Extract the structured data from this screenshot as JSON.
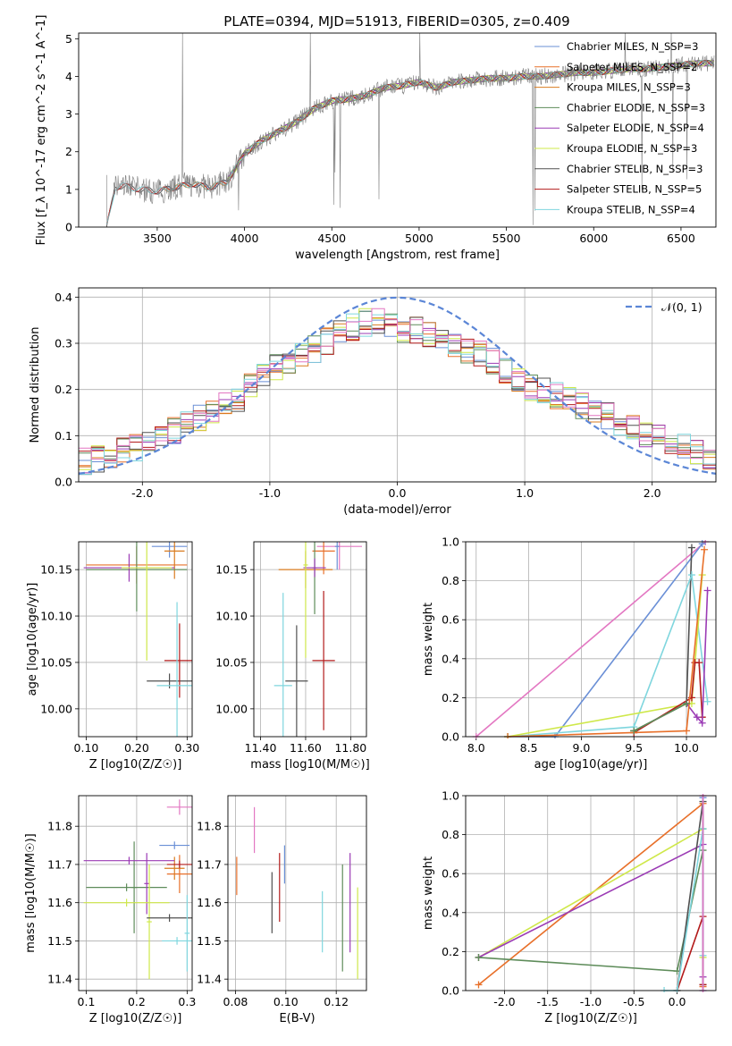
{
  "figure": {
    "title": "PLATE=0394, MJD=51913, FIBERID=0305, z=0.409"
  },
  "chart_data": [
    {
      "id": "spectrum",
      "type": "line",
      "xlabel": "wavelength [Angstrom, rest frame]",
      "ylabel": "Flux [f_λ 10^-17 erg cm^-2 s^-1 A^-1]",
      "xlim": [
        3050,
        6700
      ],
      "ylim": [
        0,
        5.15
      ],
      "xticks": [
        3500,
        4000,
        4500,
        5000,
        5500,
        6000,
        6500
      ],
      "yticks": [
        0,
        1,
        2,
        3,
        4,
        5
      ],
      "grid": false,
      "legend_position": "right",
      "data_color": "#808080",
      "data_anchor": {
        "x": [
          3210,
          3260,
          3300,
          3400,
          3500,
          3600,
          3700,
          3800,
          3900,
          4000,
          4100,
          4200,
          4300,
          4400,
          4500,
          4600,
          4700,
          4800,
          4900,
          5000,
          5100,
          5200,
          5300,
          5400,
          5500,
          5600,
          5700,
          5800,
          5900,
          6000,
          6100,
          6200,
          6300,
          6400,
          6500,
          6600,
          6690
        ],
        "y": [
          0.0,
          1.05,
          1.1,
          1.0,
          0.95,
          1.05,
          1.15,
          1.05,
          1.2,
          1.95,
          2.3,
          2.55,
          2.8,
          3.15,
          3.35,
          3.4,
          3.5,
          3.7,
          3.75,
          3.85,
          3.7,
          3.85,
          3.9,
          3.95,
          3.95,
          4.0,
          4.0,
          4.05,
          4.1,
          4.1,
          4.15,
          4.2,
          4.2,
          4.25,
          4.3,
          4.35,
          4.35
        ]
      },
      "series": [
        {
          "name": "Chabrier MILES, N_SSP=3",
          "color": "#6a8fd6",
          "xmin": 3525
        },
        {
          "name": "Salpeter MILES, N_SSP=2",
          "color": "#e8702a",
          "xmin": 3525
        },
        {
          "name": "Kroupa MILES, N_SSP=3",
          "color": "#d97b1f",
          "xmin": 3525
        },
        {
          "name": "Chabrier ELODIE, N_SSP=3",
          "color": "#5e8c5a",
          "xmin": 3900
        },
        {
          "name": "Salpeter ELODIE, N_SSP=4",
          "color": "#9b3bb5",
          "xmin": 3900
        },
        {
          "name": "Kroupa ELODIE, N_SSP=3",
          "color": "#cfe84a",
          "xmin": 3900
        },
        {
          "name": "Chabrier STELIB, N_SSP=3",
          "color": "#505050",
          "xmin": 3210
        },
        {
          "name": "Salpeter STELIB, N_SSP=5",
          "color": "#b31b1b",
          "xmin": 3210
        },
        {
          "name": "Kroupa STELIB, N_SSP=4",
          "color": "#7fd6de",
          "xmin": 3210
        }
      ]
    },
    {
      "id": "residuals",
      "type": "line",
      "xlabel": "(data-model)/error",
      "ylabel": "Normed distribution",
      "xlim": [
        -2.5,
        2.5
      ],
      "ylim": [
        0,
        0.42
      ],
      "xticks": [
        -2,
        -1,
        0,
        1,
        2
      ],
      "yticks": [
        0.0,
        0.1,
        0.2,
        0.3,
        0.4
      ],
      "grid": true,
      "legend": "𝒩(0, 1)",
      "legend_position": "top-right",
      "gaussian_color": "#5b86d6",
      "hist_x": [
        -2.5,
        -2.2,
        -1.9,
        -1.6,
        -1.3,
        -1.0,
        -0.7,
        -0.4,
        -0.2,
        0.0,
        0.2,
        0.4,
        0.7,
        1.0,
        1.3,
        1.6,
        1.9,
        2.2,
        2.5
      ],
      "hist_y": [
        0.04,
        0.06,
        0.09,
        0.13,
        0.17,
        0.24,
        0.28,
        0.33,
        0.35,
        0.33,
        0.33,
        0.3,
        0.27,
        0.21,
        0.18,
        0.15,
        0.11,
        0.08,
        0.05
      ]
    },
    {
      "id": "age-vs-Z",
      "type": "scatter",
      "xlabel": "Z [log10(Z/Z☉)]",
      "ylabel": "age  [log10(age/yr)]",
      "xlim": [
        0.085,
        0.31
      ],
      "ylim": [
        9.97,
        10.18
      ],
      "xticks": [
        0.1,
        0.2,
        0.3
      ],
      "yticks": [
        10.0,
        10.05,
        10.1,
        10.15
      ],
      "grid": true,
      "points": [
        {
          "x": 0.265,
          "y": 10.175,
          "xerr": 0.035,
          "yerr": 0.012,
          "color": "#6a8fd6"
        },
        {
          "x": 0.2,
          "y": 10.155,
          "xerr": 0.1,
          "yerr": 0.02,
          "color": "#e8702a"
        },
        {
          "x": 0.275,
          "y": 10.17,
          "xerr": 0.02,
          "yerr": 0.03,
          "color": "#d97b1f"
        },
        {
          "x": 0.2,
          "y": 10.15,
          "xerr": 0.1,
          "yerr": 0.045,
          "color": "#5e8c5a"
        },
        {
          "x": 0.185,
          "y": 10.152,
          "xerr": 0.09,
          "yerr": 0.015,
          "color": "#9b3bb5"
        },
        {
          "x": 0.22,
          "y": 10.152,
          "xerr": 0.05,
          "yerr": 0.1,
          "color": "#cfe84a"
        },
        {
          "x": 0.265,
          "y": 10.03,
          "xerr": 0.045,
          "yerr": 0.008,
          "color": "#505050"
        },
        {
          "x": 0.285,
          "y": 10.052,
          "xerr": 0.03,
          "yerr": 0.04,
          "color": "#b31b1b"
        },
        {
          "x": 0.28,
          "y": 10.025,
          "xerr": 0.04,
          "yerr": 0.09,
          "color": "#7fd6de"
        }
      ]
    },
    {
      "id": "age-vs-mass",
      "type": "scatter",
      "xlabel": "mass [log10(M/M☉)]",
      "ylabel": "",
      "xlim": [
        11.37,
        11.87
      ],
      "ylim": [
        9.97,
        10.18
      ],
      "xticks": [
        11.4,
        11.6,
        11.8
      ],
      "yticks": [
        10.0,
        10.05,
        10.1,
        10.15
      ],
      "grid": true,
      "points": [
        {
          "x": 11.75,
          "y": 10.175,
          "xerr": 0.1,
          "yerr": 0.025,
          "color": "#e377c2"
        },
        {
          "x": 11.74,
          "y": 10.175,
          "xerr": 0.01,
          "yerr": 0.025,
          "color": "#6a8fd6"
        },
        {
          "x": 11.68,
          "y": 10.17,
          "xerr": 0.05,
          "yerr": 0.025,
          "color": "#e8702a"
        },
        {
          "x": 11.6,
          "y": 10.15,
          "xerr": 0.12,
          "yerr": 0.02,
          "color": "#d97b1f"
        },
        {
          "x": 11.64,
          "y": 10.152,
          "xerr": 0.01,
          "yerr": 0.05,
          "color": "#5e8c5a"
        },
        {
          "x": 11.64,
          "y": 10.152,
          "xerr": 0.05,
          "yerr": 0.01,
          "color": "#9b3bb5"
        },
        {
          "x": 11.6,
          "y": 10.155,
          "xerr": 0.01,
          "yerr": 0.1,
          "color": "#cfe84a"
        },
        {
          "x": 11.56,
          "y": 10.03,
          "xerr": 0.05,
          "yerr": 0.06,
          "color": "#505050"
        },
        {
          "x": 11.68,
          "y": 10.052,
          "xerr": 0.05,
          "yerr": 0.075,
          "color": "#b31b1b"
        },
        {
          "x": 11.5,
          "y": 10.025,
          "xerr": 0.04,
          "yerr": 0.1,
          "color": "#7fd6de"
        }
      ]
    },
    {
      "id": "mass-weight-vs-age",
      "type": "line",
      "xlabel": "age  [log10(age/yr)]",
      "ylabel": "mass weight",
      "xlim": [
        7.9,
        10.28
      ],
      "ylim": [
        0,
        1.0
      ],
      "xticks": [
        8.0,
        8.5,
        9.0,
        9.5,
        10.0
      ],
      "yticks": [
        0.0,
        0.2,
        0.4,
        0.6,
        0.8,
        1.0
      ],
      "grid": true,
      "series": [
        {
          "color": "#e377c2",
          "x": [
            8.0,
            10.18
          ],
          "y": [
            0.0,
            1.0
          ]
        },
        {
          "color": "#6a8fd6",
          "x": [
            8.3,
            8.75,
            10.15
          ],
          "y": [
            0.0,
            0.0,
            0.99
          ]
        },
        {
          "color": "#505050",
          "x": [
            9.5,
            10.0,
            10.05
          ],
          "y": [
            0.03,
            0.17,
            0.97
          ]
        },
        {
          "color": "#7fd6de",
          "x": [
            8.3,
            9.5,
            10.05,
            10.2
          ],
          "y": [
            0.0,
            0.05,
            0.83,
            0.18
          ]
        },
        {
          "color": "#cfe84a",
          "x": [
            8.3,
            10.05,
            10.15
          ],
          "y": [
            0.0,
            0.17,
            0.83
          ]
        },
        {
          "color": "#b31b1b",
          "x": [
            9.5,
            10.05,
            10.08,
            10.12,
            10.15
          ],
          "y": [
            0.02,
            0.2,
            0.38,
            0.38,
            0.1
          ]
        },
        {
          "color": "#9b3bb5",
          "x": [
            10.0,
            10.1,
            10.15,
            10.2
          ],
          "y": [
            0.17,
            0.1,
            0.07,
            0.75
          ]
        },
        {
          "color": "#e8702a",
          "x": [
            8.3,
            10.0,
            10.17
          ],
          "y": [
            0.0,
            0.03,
            0.96
          ]
        },
        {
          "color": "#5e8c5a",
          "x": [
            9.5,
            10.0
          ],
          "y": [
            0.03,
            0.17
          ]
        }
      ]
    },
    {
      "id": "mass-vs-Z",
      "type": "scatter",
      "xlabel": "Z [log10(Z/Z☉)]",
      "ylabel": "mass [log10(M/M☉)]",
      "xlim": [
        0.085,
        0.31
      ],
      "ylim": [
        11.37,
        11.88
      ],
      "xticks": [
        0.1,
        0.2,
        0.3
      ],
      "yticks": [
        11.4,
        11.5,
        11.6,
        11.7,
        11.8
      ],
      "grid": true,
      "points": [
        {
          "x": 0.285,
          "y": 11.85,
          "xerr": 0.025,
          "yerr": 0.02,
          "color": "#e377c2"
        },
        {
          "x": 0.275,
          "y": 11.75,
          "xerr": 0.03,
          "yerr": 0.01,
          "color": "#6a8fd6"
        },
        {
          "x": 0.285,
          "y": 11.675,
          "xerr": 0.025,
          "yerr": 0.05,
          "color": "#e8702a"
        },
        {
          "x": 0.275,
          "y": 11.69,
          "xerr": 0.02,
          "yerr": 0.03,
          "color": "#d97b1f"
        },
        {
          "x": 0.18,
          "y": 11.64,
          "xerr": 0.08,
          "yerr": 0.01,
          "color": "#5e8c5a"
        },
        {
          "x": 0.195,
          "y": 11.64,
          "xerr": 0.005,
          "yerr": 0.12,
          "color": "#5e8c5a"
        },
        {
          "x": 0.185,
          "y": 11.71,
          "xerr": 0.09,
          "yerr": 0.01,
          "color": "#9b3bb5"
        },
        {
          "x": 0.22,
          "y": 11.65,
          "xerr": 0.005,
          "yerr": 0.08,
          "color": "#9b3bb5"
        },
        {
          "x": 0.18,
          "y": 11.6,
          "xerr": 0.085,
          "yerr": 0.01,
          "color": "#cfe84a"
        },
        {
          "x": 0.225,
          "y": 11.55,
          "xerr": 0.005,
          "yerr": 0.15,
          "color": "#cfe84a"
        },
        {
          "x": 0.265,
          "y": 11.56,
          "xerr": 0.045,
          "yerr": 0.01,
          "color": "#505050"
        },
        {
          "x": 0.285,
          "y": 11.7,
          "xerr": 0.025,
          "yerr": 0.01,
          "color": "#b31b1b"
        },
        {
          "x": 0.28,
          "y": 11.5,
          "xerr": 0.03,
          "yerr": 0.01,
          "color": "#7fd6de"
        },
        {
          "x": 0.3,
          "y": 11.52,
          "xerr": 0.005,
          "yerr": 0.1,
          "color": "#7fd6de"
        }
      ]
    },
    {
      "id": "mass-vs-ebv",
      "type": "scatter",
      "xlabel": "E(B-V)",
      "ylabel": "",
      "xlim": [
        0.077,
        0.132
      ],
      "ylim": [
        11.37,
        11.88
      ],
      "xticks": [
        0.08,
        0.1,
        0.12
      ],
      "yticks": [
        11.4,
        11.5,
        11.6,
        11.7,
        11.8
      ],
      "grid": true,
      "points": [
        {
          "x": 0.0875,
          "y": 11.79,
          "yerr": 0.06,
          "color": "#e377c2"
        },
        {
          "x": 0.0995,
          "y": 11.7,
          "yerr": 0.05,
          "color": "#6a8fd6"
        },
        {
          "x": 0.0805,
          "y": 11.67,
          "yerr": 0.05,
          "color": "#e8702a"
        },
        {
          "x": 0.0975,
          "y": 11.64,
          "yerr": 0.09,
          "color": "#b31b1b"
        },
        {
          "x": 0.0945,
          "y": 11.6,
          "yerr": 0.08,
          "color": "#505050"
        },
        {
          "x": 0.1225,
          "y": 11.56,
          "yerr": 0.14,
          "color": "#5e8c5a"
        },
        {
          "x": 0.1255,
          "y": 11.6,
          "yerr": 0.13,
          "color": "#9b3bb5"
        },
        {
          "x": 0.1285,
          "y": 11.52,
          "yerr": 0.12,
          "color": "#cfe84a"
        },
        {
          "x": 0.1145,
          "y": 11.55,
          "yerr": 0.08,
          "color": "#7fd6de"
        }
      ]
    },
    {
      "id": "mass-weight-vs-Z",
      "type": "line",
      "xlabel": "Z [log10(Z/Z☉)]",
      "ylabel": "mass weight",
      "xlim": [
        -2.45,
        0.45
      ],
      "ylim": [
        0,
        1.0
      ],
      "xticks": [
        -2.0,
        -1.5,
        -1.0,
        -0.5,
        0.0
      ],
      "yticks": [
        0.0,
        0.2,
        0.4,
        0.6,
        0.8,
        1.0
      ],
      "grid": true,
      "series": [
        {
          "color": "#e8702a",
          "x": [
            -2.3,
            0.3,
            0.3
          ],
          "y": [
            0.03,
            0.96,
            0.02
          ]
        },
        {
          "color": "#cfe84a",
          "x": [
            -2.3,
            0.3,
            0.3
          ],
          "y": [
            0.17,
            0.83,
            0.17
          ]
        },
        {
          "color": "#9b3bb5",
          "x": [
            -2.3,
            0.3,
            0.3
          ],
          "y": [
            0.17,
            0.75,
            0.07
          ]
        },
        {
          "color": "#5e8c5a",
          "x": [
            -2.3,
            0.0,
            0.3,
            0.3
          ],
          "y": [
            0.17,
            0.1,
            0.72,
            0.83
          ]
        },
        {
          "color": "#505050",
          "x": [
            0.0,
            0.3,
            0.3
          ],
          "y": [
            0.0,
            0.97,
            0.03
          ]
        },
        {
          "color": "#b31b1b",
          "x": [
            0.0,
            0.3,
            0.3
          ],
          "y": [
            0.0,
            0.38,
            0.03
          ]
        },
        {
          "color": "#7fd6de",
          "x": [
            -0.15,
            0.0,
            0.3,
            0.3
          ],
          "y": [
            0.0,
            0.0,
            0.83,
            0.18
          ]
        },
        {
          "color": "#6a8fd6",
          "x": [
            0.3,
            0.3
          ],
          "y": [
            0.0,
            0.99
          ]
        },
        {
          "color": "#e377c2",
          "x": [
            0.3,
            0.3
          ],
          "y": [
            0.0,
            1.0
          ]
        }
      ]
    }
  ]
}
